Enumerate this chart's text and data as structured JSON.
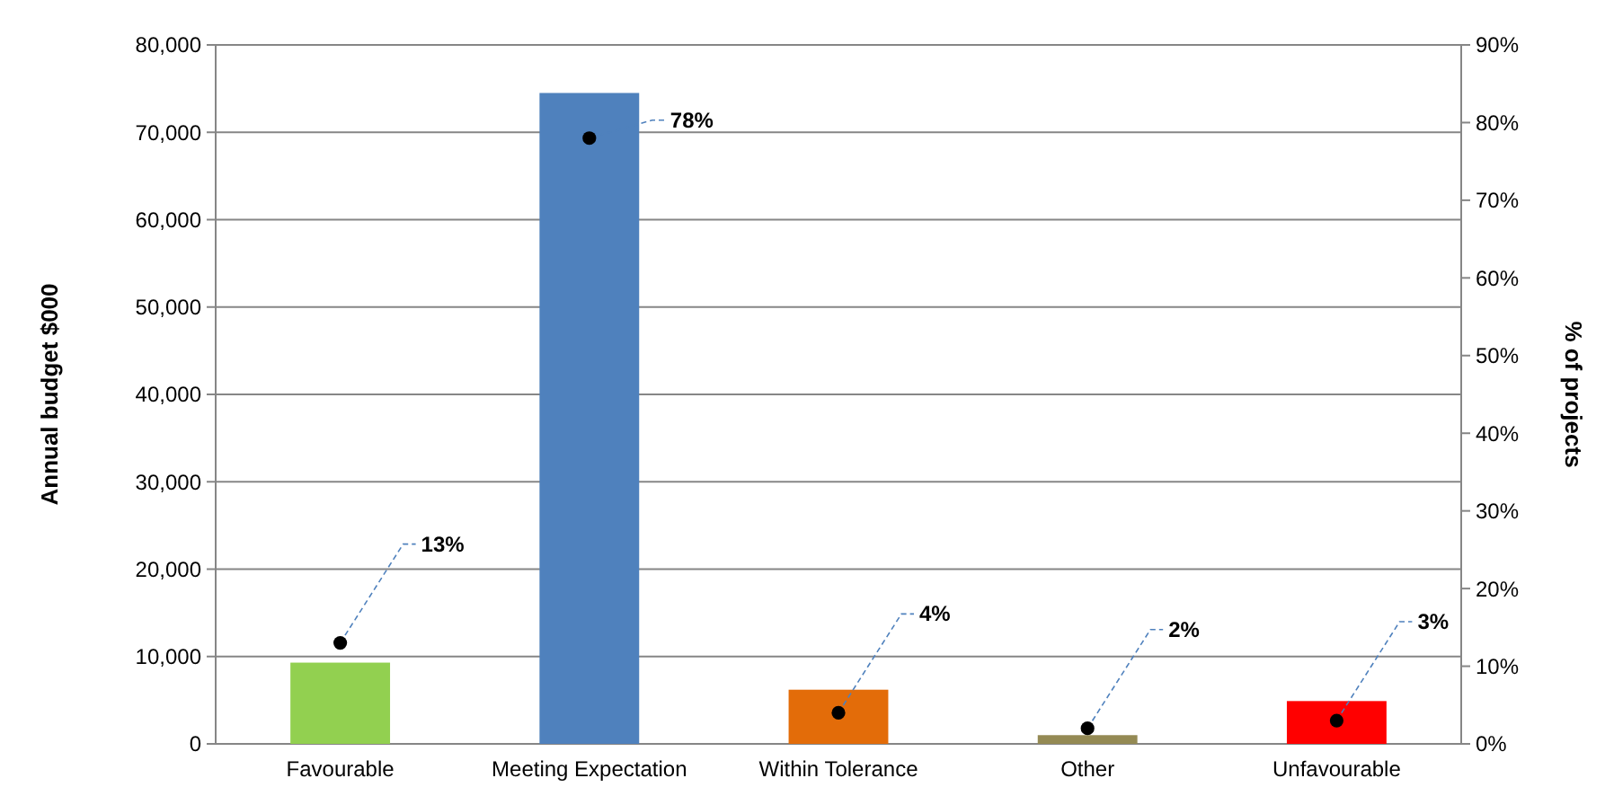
{
  "chart_data": {
    "type": "bar",
    "xlabel": null,
    "ylabel": "Annual budget $000",
    "y2label": "% of projects",
    "categories": [
      "Favourable",
      "Meeting Expectation",
      "Within Tolerance",
      "Other",
      "Unfavourable"
    ],
    "series": [
      {
        "colors": [
          "#92d050",
          "#4f81bd",
          "#e36c09",
          "#948a54",
          "#ff0000"
        ],
        "values": [
          9300,
          74500,
          6200,
          1000,
          4900
        ]
      },
      {
        "type": "scatter",
        "axis": "y2",
        "color": "#000000",
        "marker": "circle",
        "values": [
          13,
          78,
          4,
          2,
          3
        ],
        "value_labels": [
          "13%",
          "78%",
          "4%",
          "2%",
          "3%"
        ]
      }
    ],
    "ylim": [
      0,
      80000
    ],
    "yticks": [
      {
        "value": 0,
        "label": "0"
      },
      {
        "value": 10000,
        "label": "10,000"
      },
      {
        "value": 20000,
        "label": "20,000"
      },
      {
        "value": 30000,
        "label": "30,000"
      },
      {
        "value": 40000,
        "label": "40,000"
      },
      {
        "value": 50000,
        "label": "50,000"
      },
      {
        "value": 60000,
        "label": "60,000"
      },
      {
        "value": 70000,
        "label": "70,000"
      },
      {
        "value": 80000,
        "label": "80,000"
      }
    ],
    "y2lim": [
      0,
      90
    ],
    "y2ticks": [
      {
        "value": 0,
        "label": "0%"
      },
      {
        "value": 10,
        "label": "10%"
      },
      {
        "value": 20,
        "label": "20%"
      },
      {
        "value": 30,
        "label": "30%"
      },
      {
        "value": 40,
        "label": "40%"
      },
      {
        "value": 50,
        "label": "50%"
      },
      {
        "value": 60,
        "label": "60%"
      },
      {
        "value": 70,
        "label": "70%"
      },
      {
        "value": 80,
        "label": "80%"
      },
      {
        "value": 90,
        "label": "90%"
      }
    ],
    "grid": "y"
  }
}
